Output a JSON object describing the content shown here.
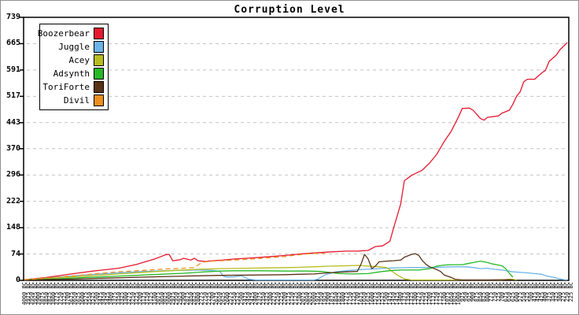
{
  "title": "Corruption Level",
  "chart_data": {
    "type": "line",
    "title": "Corruption Level",
    "grid": "horizontal-dashed",
    "grid_color": "#c4c4c4",
    "legend_position": "top-left",
    "x_suffix": "BC",
    "x_labels": [
      4000,
      3975,
      3950,
      3925,
      3900,
      3875,
      3850,
      3825,
      3800,
      3775,
      3750,
      3725,
      3700,
      3675,
      3650,
      3625,
      3600,
      3575,
      3550,
      3525,
      3500,
      3475,
      3450,
      3425,
      3400,
      3375,
      3350,
      3325,
      3300,
      3275,
      3250,
      3225,
      3200,
      3175,
      3150,
      3125,
      3100,
      3075,
      3050,
      3025,
      3000,
      2975,
      2950,
      2925,
      2900,
      2875,
      2850,
      2825,
      2800,
      2775,
      2750,
      2725,
      2700,
      2675,
      2650,
      2625,
      2600,
      2575,
      2550,
      2525,
      2500,
      2475,
      2450,
      2425,
      2400,
      2375,
      2350,
      2325,
      2300,
      2275,
      2250,
      2225,
      2200,
      2175,
      2150,
      2125,
      2100,
      2075,
      2050,
      2025,
      2000,
      1975,
      1950,
      1925,
      1900,
      1875,
      1850,
      1825,
      1800,
      1775,
      1750,
      1725,
      1700,
      1675,
      1650,
      1625,
      1600,
      1575,
      1550,
      1525,
      1500,
      1475,
      1450,
      1425,
      1400,
      1375,
      1350,
      1325,
      1300,
      1275,
      1250,
      1225,
      1200,
      1175,
      1150,
      1125,
      1100,
      1075,
      1050,
      1025,
      1000,
      975,
      950,
      925,
      900,
      875,
      850,
      825,
      800,
      775,
      750,
      725,
      700,
      675,
      650,
      625,
      600,
      575,
      550,
      525,
      500,
      475,
      450,
      425,
      400,
      375,
      350,
      325,
      300,
      275,
      250,
      225
    ],
    "y_ticks": [
      0,
      74,
      148,
      222,
      296,
      370,
      443,
      517,
      591,
      665,
      739
    ],
    "ylim": [
      0,
      739
    ],
    "series": [
      {
        "name": "Boozerbear",
        "color": "#e6182e",
        "points": [
          [
            4000,
            2
          ],
          [
            3850,
            8
          ],
          [
            3675,
            18
          ],
          [
            3525,
            26
          ],
          [
            3350,
            34
          ],
          [
            3225,
            45
          ],
          [
            3100,
            60
          ],
          [
            3050,
            68
          ],
          [
            3025,
            72
          ],
          [
            3000,
            73
          ],
          [
            2975,
            55
          ],
          [
            2925,
            58
          ],
          [
            2900,
            62
          ],
          [
            2850,
            57
          ],
          [
            2825,
            62
          ],
          [
            2800,
            55
          ],
          [
            2750,
            53
          ],
          [
            2700,
            55
          ],
          [
            2625,
            57
          ],
          [
            2550,
            60
          ],
          [
            2425,
            63
          ],
          [
            2325,
            66
          ],
          [
            2200,
            70
          ],
          [
            2100,
            74
          ],
          [
            2000,
            77
          ],
          [
            1875,
            80
          ],
          [
            1775,
            82
          ],
          [
            1700,
            82
          ],
          [
            1625,
            84
          ],
          [
            1575,
            95
          ],
          [
            1525,
            97
          ],
          [
            1475,
            110
          ],
          [
            1450,
            146
          ],
          [
            1400,
            215
          ],
          [
            1375,
            280
          ],
          [
            1325,
            295
          ],
          [
            1300,
            300
          ],
          [
            1250,
            310
          ],
          [
            1200,
            330
          ],
          [
            1150,
            355
          ],
          [
            1100,
            390
          ],
          [
            1050,
            420
          ],
          [
            1000,
            460
          ],
          [
            975,
            483
          ],
          [
            925,
            484
          ],
          [
            900,
            478
          ],
          [
            850,
            455
          ],
          [
            825,
            450
          ],
          [
            800,
            458
          ],
          [
            725,
            462
          ],
          [
            700,
            470
          ],
          [
            650,
            478
          ],
          [
            625,
            495
          ],
          [
            600,
            517
          ],
          [
            575,
            530
          ],
          [
            550,
            558
          ],
          [
            525,
            565
          ],
          [
            475,
            565
          ],
          [
            425,
            583
          ],
          [
            400,
            590
          ],
          [
            375,
            615
          ],
          [
            325,
            633
          ],
          [
            300,
            648
          ],
          [
            250,
            668
          ]
        ]
      },
      {
        "name": "Juggle",
        "color": "#6db4e8",
        "points": [
          [
            4000,
            1
          ],
          [
            3850,
            6
          ],
          [
            3625,
            14
          ],
          [
            3400,
            20
          ],
          [
            3175,
            25
          ],
          [
            2950,
            28
          ],
          [
            2800,
            29
          ],
          [
            2700,
            28
          ],
          [
            2650,
            25
          ],
          [
            2625,
            12
          ],
          [
            2600,
            9
          ],
          [
            2550,
            10
          ],
          [
            2500,
            13
          ],
          [
            2475,
            8
          ],
          [
            2450,
            3
          ],
          [
            2400,
            1
          ],
          [
            2000,
            1
          ],
          [
            1975,
            3
          ],
          [
            1925,
            15
          ],
          [
            1850,
            24
          ],
          [
            1750,
            28
          ],
          [
            1675,
            30
          ],
          [
            1550,
            33
          ],
          [
            1450,
            35
          ],
          [
            1325,
            36
          ],
          [
            1225,
            36
          ],
          [
            1125,
            37
          ],
          [
            1050,
            38
          ],
          [
            950,
            38
          ],
          [
            900,
            36
          ],
          [
            850,
            33
          ],
          [
            800,
            34
          ],
          [
            750,
            31
          ],
          [
            700,
            29
          ],
          [
            625,
            24
          ],
          [
            550,
            22
          ],
          [
            475,
            19
          ],
          [
            425,
            17
          ],
          [
            400,
            13
          ],
          [
            350,
            9
          ],
          [
            300,
            4
          ],
          [
            275,
            2
          ],
          [
            250,
            1
          ]
        ]
      },
      {
        "name": "Acey",
        "color": "#b8bc1f",
        "points": [
          [
            4000,
            2
          ],
          [
            3800,
            7
          ],
          [
            3575,
            12
          ],
          [
            3350,
            18
          ],
          [
            3125,
            24
          ],
          [
            2950,
            28
          ],
          [
            2800,
            31
          ],
          [
            2650,
            33
          ],
          [
            2475,
            34
          ],
          [
            2325,
            35
          ],
          [
            2150,
            36
          ],
          [
            2000,
            38
          ],
          [
            1875,
            40
          ],
          [
            1775,
            41
          ],
          [
            1700,
            42
          ],
          [
            1625,
            40
          ],
          [
            1550,
            38
          ],
          [
            1500,
            36
          ],
          [
            1475,
            30
          ],
          [
            1425,
            15
          ],
          [
            1375,
            4
          ],
          [
            1325,
            1
          ],
          [
            700,
            1
          ],
          [
            650,
            3
          ],
          [
            625,
            3
          ],
          [
            600,
            1
          ]
        ]
      },
      {
        "name": "Adsynth",
        "color": "#25b925",
        "points": [
          [
            4000,
            1
          ],
          [
            3800,
            4
          ],
          [
            3575,
            8
          ],
          [
            3350,
            12
          ],
          [
            3125,
            16
          ],
          [
            2900,
            20
          ],
          [
            2750,
            24
          ],
          [
            2650,
            26
          ],
          [
            2550,
            27
          ],
          [
            2375,
            27
          ],
          [
            2200,
            26
          ],
          [
            2050,
            26
          ],
          [
            1950,
            25
          ],
          [
            1825,
            19
          ],
          [
            1725,
            18
          ],
          [
            1625,
            19
          ],
          [
            1525,
            25
          ],
          [
            1450,
            28
          ],
          [
            1400,
            29
          ],
          [
            1275,
            29
          ],
          [
            1200,
            33
          ],
          [
            1150,
            40
          ],
          [
            1100,
            43
          ],
          [
            1050,
            44
          ],
          [
            975,
            44
          ],
          [
            950,
            46
          ],
          [
            875,
            52
          ],
          [
            850,
            54
          ],
          [
            800,
            50
          ],
          [
            775,
            47
          ],
          [
            725,
            43
          ],
          [
            700,
            41
          ],
          [
            675,
            33
          ],
          [
            650,
            20
          ],
          [
            625,
            9
          ]
        ]
      },
      {
        "name": "ToriForte",
        "color": "#5a3317",
        "points": [
          [
            4000,
            1
          ],
          [
            3725,
            3
          ],
          [
            3450,
            6
          ],
          [
            3175,
            9
          ],
          [
            2900,
            12
          ],
          [
            2650,
            14
          ],
          [
            2375,
            15
          ],
          [
            2200,
            16
          ],
          [
            2100,
            17
          ],
          [
            2000,
            18
          ],
          [
            1875,
            22
          ],
          [
            1775,
            24
          ],
          [
            1700,
            25
          ],
          [
            1675,
            45
          ],
          [
            1650,
            73
          ],
          [
            1625,
            60
          ],
          [
            1600,
            33
          ],
          [
            1575,
            40
          ],
          [
            1550,
            52
          ],
          [
            1500,
            54
          ],
          [
            1450,
            55
          ],
          [
            1400,
            57
          ],
          [
            1375,
            65
          ],
          [
            1325,
            73
          ],
          [
            1300,
            75
          ],
          [
            1275,
            70
          ],
          [
            1250,
            55
          ],
          [
            1225,
            45
          ],
          [
            1200,
            38
          ],
          [
            1150,
            30
          ],
          [
            1125,
            25
          ],
          [
            1100,
            15
          ],
          [
            1050,
            8
          ],
          [
            1025,
            3
          ],
          [
            975,
            1
          ],
          [
            800,
            1
          ],
          [
            650,
            2
          ],
          [
            625,
            1
          ]
        ]
      },
      {
        "name": "Divil",
        "color": "#ee8f1f",
        "points": [
          [
            4000,
            2
          ],
          [
            3850,
            6
          ],
          [
            3675,
            12
          ],
          [
            3525,
            18
          ],
          [
            3350,
            24
          ],
          [
            3175,
            28
          ],
          [
            3025,
            32
          ],
          [
            2900,
            34
          ],
          [
            2825,
            36
          ],
          [
            2775,
            50
          ],
          [
            2750,
            52
          ],
          [
            2700,
            54
          ],
          [
            2650,
            55
          ],
          [
            2550,
            57
          ],
          [
            2425,
            60
          ],
          [
            2325,
            63
          ],
          [
            2200,
            67
          ],
          [
            2100,
            72
          ],
          [
            2025,
            75
          ],
          [
            1975,
            76
          ],
          [
            1925,
            76
          ]
        ]
      }
    ]
  },
  "legend": {
    "entries": [
      {
        "label": "Boozerbear",
        "color": "#e6182e"
      },
      {
        "label": "Juggle",
        "color": "#6db4e8"
      },
      {
        "label": "Acey",
        "color": "#b8bc1f"
      },
      {
        "label": "Adsynth",
        "color": "#25b925"
      },
      {
        "label": "ToriForte",
        "color": "#5a3317"
      },
      {
        "label": "Divil",
        "color": "#ee8f1f"
      }
    ]
  }
}
